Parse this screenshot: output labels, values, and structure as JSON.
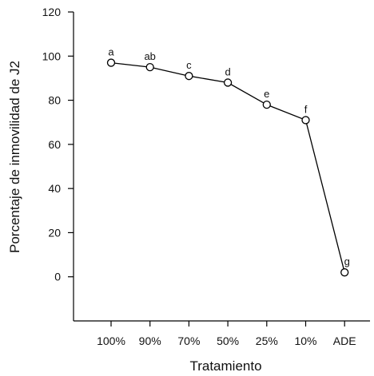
{
  "chart_data": {
    "type": "line",
    "categories": [
      "100%",
      "90%",
      "70%",
      "50%",
      "25%",
      "10%",
      "ADE"
    ],
    "values": [
      97,
      95,
      91,
      88,
      78,
      71,
      2
    ],
    "point_labels": [
      "a",
      "ab",
      "c",
      "d",
      "e",
      "f",
      "g"
    ],
    "title": "",
    "xlabel": "Tratamiento",
    "ylabel": "Porcentaje de inmovilidad de J2",
    "ylim": [
      -20,
      120
    ],
    "yticks": [
      0,
      20,
      40,
      60,
      80,
      100,
      120
    ],
    "grid": false,
    "legend": "none",
    "colors": {
      "line": "#000000",
      "marker_fill": "#ffffff",
      "marker_stroke": "#000000"
    }
  }
}
